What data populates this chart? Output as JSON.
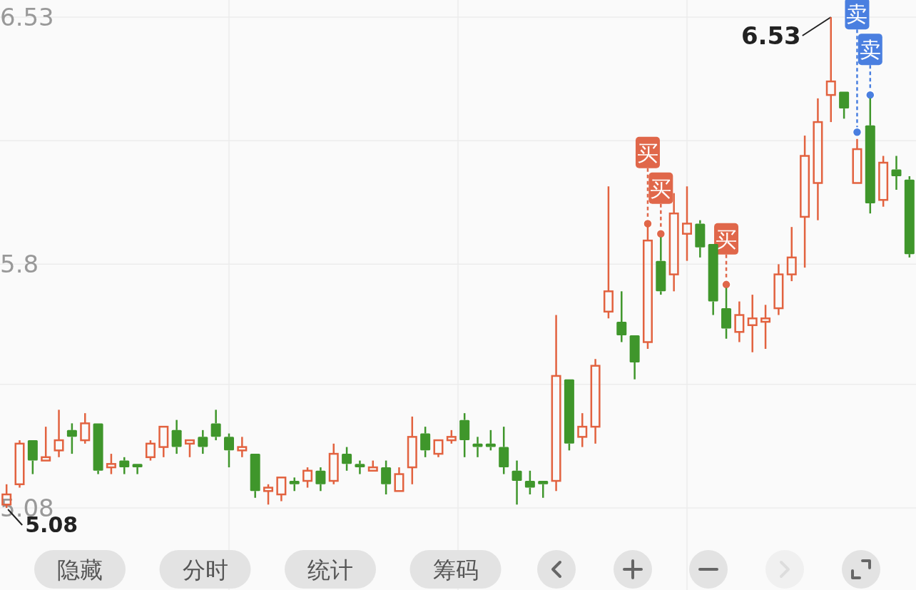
{
  "chart_data": {
    "type": "candlestick",
    "categories": [
      null,
      null,
      null,
      null,
      null,
      null,
      null,
      null,
      null,
      null,
      null,
      null,
      null,
      null,
      null,
      null,
      null,
      null,
      null,
      null,
      null,
      null,
      null,
      null,
      null,
      null,
      null,
      null,
      null,
      null,
      null,
      null,
      null,
      null,
      null,
      null,
      null,
      null,
      null,
      null,
      null,
      null,
      null,
      null,
      null,
      null,
      null,
      null,
      null,
      null,
      null,
      null,
      null,
      null,
      null,
      null,
      null,
      null,
      null,
      null,
      null,
      null,
      null,
      null,
      null,
      null,
      null,
      null,
      null,
      null
    ],
    "ohlc": [
      [
        5.09,
        5.15,
        5.08,
        5.12
      ],
      [
        5.15,
        5.28,
        5.14,
        5.27
      ],
      [
        5.28,
        5.28,
        5.18,
        5.22
      ],
      [
        5.22,
        5.32,
        5.22,
        5.23
      ],
      [
        5.25,
        5.37,
        5.23,
        5.28
      ],
      [
        5.31,
        5.33,
        5.24,
        5.29
      ],
      [
        5.28,
        5.36,
        5.27,
        5.33
      ],
      [
        5.33,
        5.33,
        5.18,
        5.19
      ],
      [
        5.2,
        5.24,
        5.18,
        5.21
      ],
      [
        5.22,
        5.23,
        5.18,
        5.2
      ],
      [
        5.21,
        5.21,
        5.18,
        5.2
      ],
      [
        5.23,
        5.28,
        5.22,
        5.27
      ],
      [
        5.26,
        5.32,
        5.23,
        5.32
      ],
      [
        5.31,
        5.34,
        5.24,
        5.26
      ],
      [
        5.27,
        5.28,
        5.23,
        5.28
      ],
      [
        5.29,
        5.31,
        5.24,
        5.26
      ],
      [
        5.33,
        5.37,
        5.28,
        5.29
      ],
      [
        5.29,
        5.3,
        5.2,
        5.25
      ],
      [
        5.25,
        5.29,
        5.23,
        5.26
      ],
      [
        5.24,
        5.24,
        5.11,
        5.13
      ],
      [
        5.13,
        5.15,
        5.09,
        5.14
      ],
      [
        5.12,
        5.17,
        5.1,
        5.17
      ],
      [
        5.16,
        5.17,
        5.13,
        5.15
      ],
      [
        5.16,
        5.2,
        5.14,
        5.19
      ],
      [
        5.19,
        5.2,
        5.13,
        5.15
      ],
      [
        5.16,
        5.27,
        5.15,
        5.24
      ],
      [
        5.24,
        5.26,
        5.19,
        5.21
      ],
      [
        5.21,
        5.22,
        5.18,
        5.2
      ],
      [
        5.19,
        5.22,
        5.19,
        5.2
      ],
      [
        5.2,
        5.22,
        5.12,
        5.15
      ],
      [
        5.13,
        5.2,
        5.13,
        5.18
      ],
      [
        5.2,
        5.35,
        5.15,
        5.29
      ],
      [
        5.3,
        5.32,
        5.23,
        5.25
      ],
      [
        5.24,
        5.28,
        5.23,
        5.28
      ],
      [
        5.28,
        5.31,
        5.27,
        5.29
      ],
      [
        5.34,
        5.36,
        5.23,
        5.28
      ],
      [
        5.27,
        5.29,
        5.23,
        5.26
      ],
      [
        5.27,
        5.31,
        5.25,
        5.26
      ],
      [
        5.26,
        5.32,
        5.18,
        5.2
      ],
      [
        5.19,
        5.22,
        5.09,
        5.16
      ],
      [
        5.16,
        5.19,
        5.12,
        5.14
      ],
      [
        5.16,
        5.16,
        5.11,
        5.15
      ],
      [
        5.16,
        5.65,
        5.13,
        5.47
      ],
      [
        5.46,
        5.46,
        5.25,
        5.27
      ],
      [
        5.29,
        5.36,
        5.26,
        5.32
      ],
      [
        5.32,
        5.52,
        5.27,
        5.5
      ],
      [
        5.66,
        6.03,
        5.64,
        5.72
      ],
      [
        5.63,
        5.72,
        5.57,
        5.59
      ],
      [
        5.59,
        5.59,
        5.46,
        5.51
      ],
      [
        5.57,
        5.92,
        5.55,
        5.87
      ],
      [
        5.81,
        5.88,
        5.71,
        5.72
      ],
      [
        5.77,
        6.01,
        5.72,
        5.95
      ],
      [
        5.89,
        6.03,
        5.81,
        5.92
      ],
      [
        5.92,
        5.93,
        5.82,
        5.85
      ],
      [
        5.86,
        5.86,
        5.65,
        5.69
      ],
      [
        5.67,
        5.73,
        5.58,
        5.61
      ],
      [
        5.6,
        5.69,
        5.57,
        5.65
      ],
      [
        5.62,
        5.71,
        5.54,
        5.64
      ],
      [
        5.63,
        5.68,
        5.55,
        5.64
      ],
      [
        5.67,
        5.8,
        5.65,
        5.77
      ],
      [
        5.77,
        5.91,
        5.75,
        5.82
      ],
      [
        5.94,
        6.18,
        5.79,
        6.12
      ],
      [
        6.04,
        6.29,
        5.93,
        6.22
      ],
      [
        6.3,
        6.53,
        6.22,
        6.34
      ],
      [
        6.31,
        6.31,
        6.23,
        6.26
      ],
      [
        6.04,
        6.17,
        6.04,
        6.14
      ],
      [
        6.21,
        6.29,
        5.95,
        5.98
      ],
      [
        5.99,
        6.12,
        5.97,
        6.1
      ],
      [
        6.08,
        6.12,
        6.02,
        6.06
      ],
      [
        6.05,
        6.06,
        5.82,
        5.83
      ]
    ],
    "series": [
      {
        "type": "scatter",
        "color": "#e0674a",
        "marker": "circle",
        "values": [
          null,
          null,
          null,
          null,
          null,
          null,
          null,
          null,
          null,
          null,
          null,
          null,
          null,
          null,
          null,
          null,
          null,
          null,
          null,
          null,
          null,
          null,
          null,
          null,
          null,
          null,
          null,
          null,
          null,
          null,
          null,
          null,
          null,
          null,
          null,
          null,
          null,
          null,
          null,
          null,
          null,
          null,
          null,
          null,
          null,
          null,
          null,
          null,
          null,
          5.92,
          5.89,
          null,
          null,
          null,
          null,
          5.74,
          null,
          null,
          null,
          null,
          null,
          null,
          null,
          null,
          null,
          null,
          null,
          null,
          null,
          null
        ],
        "value_labels": [
          null,
          null,
          null,
          null,
          null,
          null,
          null,
          null,
          null,
          null,
          null,
          null,
          null,
          null,
          null,
          null,
          null,
          null,
          null,
          null,
          null,
          null,
          null,
          null,
          null,
          null,
          null,
          null,
          null,
          null,
          null,
          null,
          null,
          null,
          null,
          null,
          null,
          null,
          null,
          null,
          null,
          null,
          null,
          null,
          null,
          null,
          null,
          null,
          null,
          "买",
          "买",
          null,
          null,
          null,
          null,
          "买",
          null,
          null,
          null,
          null,
          null,
          null,
          null,
          null,
          null,
          null,
          null,
          null,
          null,
          null
        ]
      },
      {
        "type": "scatter",
        "color": "#4a7fe0",
        "marker": "circle",
        "values": [
          null,
          null,
          null,
          null,
          null,
          null,
          null,
          null,
          null,
          null,
          null,
          null,
          null,
          null,
          null,
          null,
          null,
          null,
          null,
          null,
          null,
          null,
          null,
          null,
          null,
          null,
          null,
          null,
          null,
          null,
          null,
          null,
          null,
          null,
          null,
          null,
          null,
          null,
          null,
          null,
          null,
          null,
          null,
          null,
          null,
          null,
          null,
          null,
          null,
          null,
          null,
          null,
          null,
          null,
          null,
          null,
          null,
          null,
          null,
          null,
          null,
          null,
          null,
          null,
          null,
          6.19,
          6.3,
          null,
          null,
          null
        ],
        "value_labels": [
          null,
          null,
          null,
          null,
          null,
          null,
          null,
          null,
          null,
          null,
          null,
          null,
          null,
          null,
          null,
          null,
          null,
          null,
          null,
          null,
          null,
          null,
          null,
          null,
          null,
          null,
          null,
          null,
          null,
          null,
          null,
          null,
          null,
          null,
          null,
          null,
          null,
          null,
          null,
          null,
          null,
          null,
          null,
          null,
          null,
          null,
          null,
          null,
          null,
          null,
          null,
          null,
          null,
          null,
          null,
          null,
          null,
          null,
          null,
          null,
          null,
          null,
          null,
          null,
          null,
          "卖",
          "卖",
          null,
          null,
          null
        ]
      }
    ],
    "ylim": [
      5.08,
      6.53
    ],
    "yticks": [
      6.53,
      {
        "value": 6.165,
        "label": null
      },
      5.8,
      {
        "value": 5.445,
        "label": null
      },
      5.08
    ],
    "grid": true,
    "annotations": [
      "隐藏",
      "分时",
      "统计",
      "筹码",
      "6.53",
      "5.08"
    ]
  }
}
